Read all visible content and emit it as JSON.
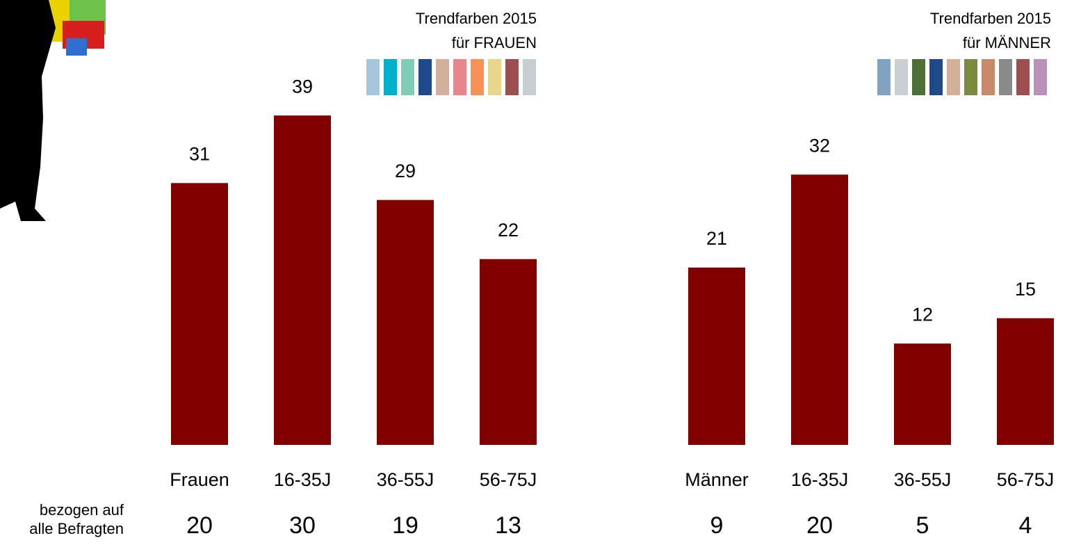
{
  "chart_data": [
    {
      "type": "bar",
      "title": [
        "Trendfarben 2015",
        "für FRAUEN"
      ],
      "palette": [
        "#a3c8dc",
        "#00b0cc",
        "#7fcdb5",
        "#1e4a8a",
        "#d2b09a",
        "#e8868e",
        "#f79256",
        "#e8d68a",
        "#9b4f4f",
        "#c5cdd1"
      ],
      "categories": [
        "Frauen",
        "16-35J",
        "36-55J",
        "56-75J"
      ],
      "values": [
        31,
        39,
        29,
        22
      ],
      "overall_values": [
        20,
        30,
        19,
        13
      ],
      "color": "#800000",
      "ylim": [
        0,
        40
      ]
    },
    {
      "type": "bar",
      "title": [
        "Trendfarben 2015",
        "für MÄNNER"
      ],
      "palette": [
        "#7fa3c0",
        "#c9cfd3",
        "#4e7038",
        "#1e4a8a",
        "#d2b09a",
        "#7b8a3c",
        "#c98a6a",
        "#8a8a8a",
        "#9b4f4f",
        "#b892b8"
      ],
      "categories": [
        "Männer",
        "16-35J",
        "36-55J",
        "56-75J"
      ],
      "values": [
        21,
        32,
        12,
        15
      ],
      "overall_values": [
        9,
        20,
        5,
        4
      ],
      "color": "#800000",
      "ylim": [
        0,
        40
      ]
    }
  ],
  "footnote": [
    "bezogen auf",
    "alle Befragten"
  ]
}
